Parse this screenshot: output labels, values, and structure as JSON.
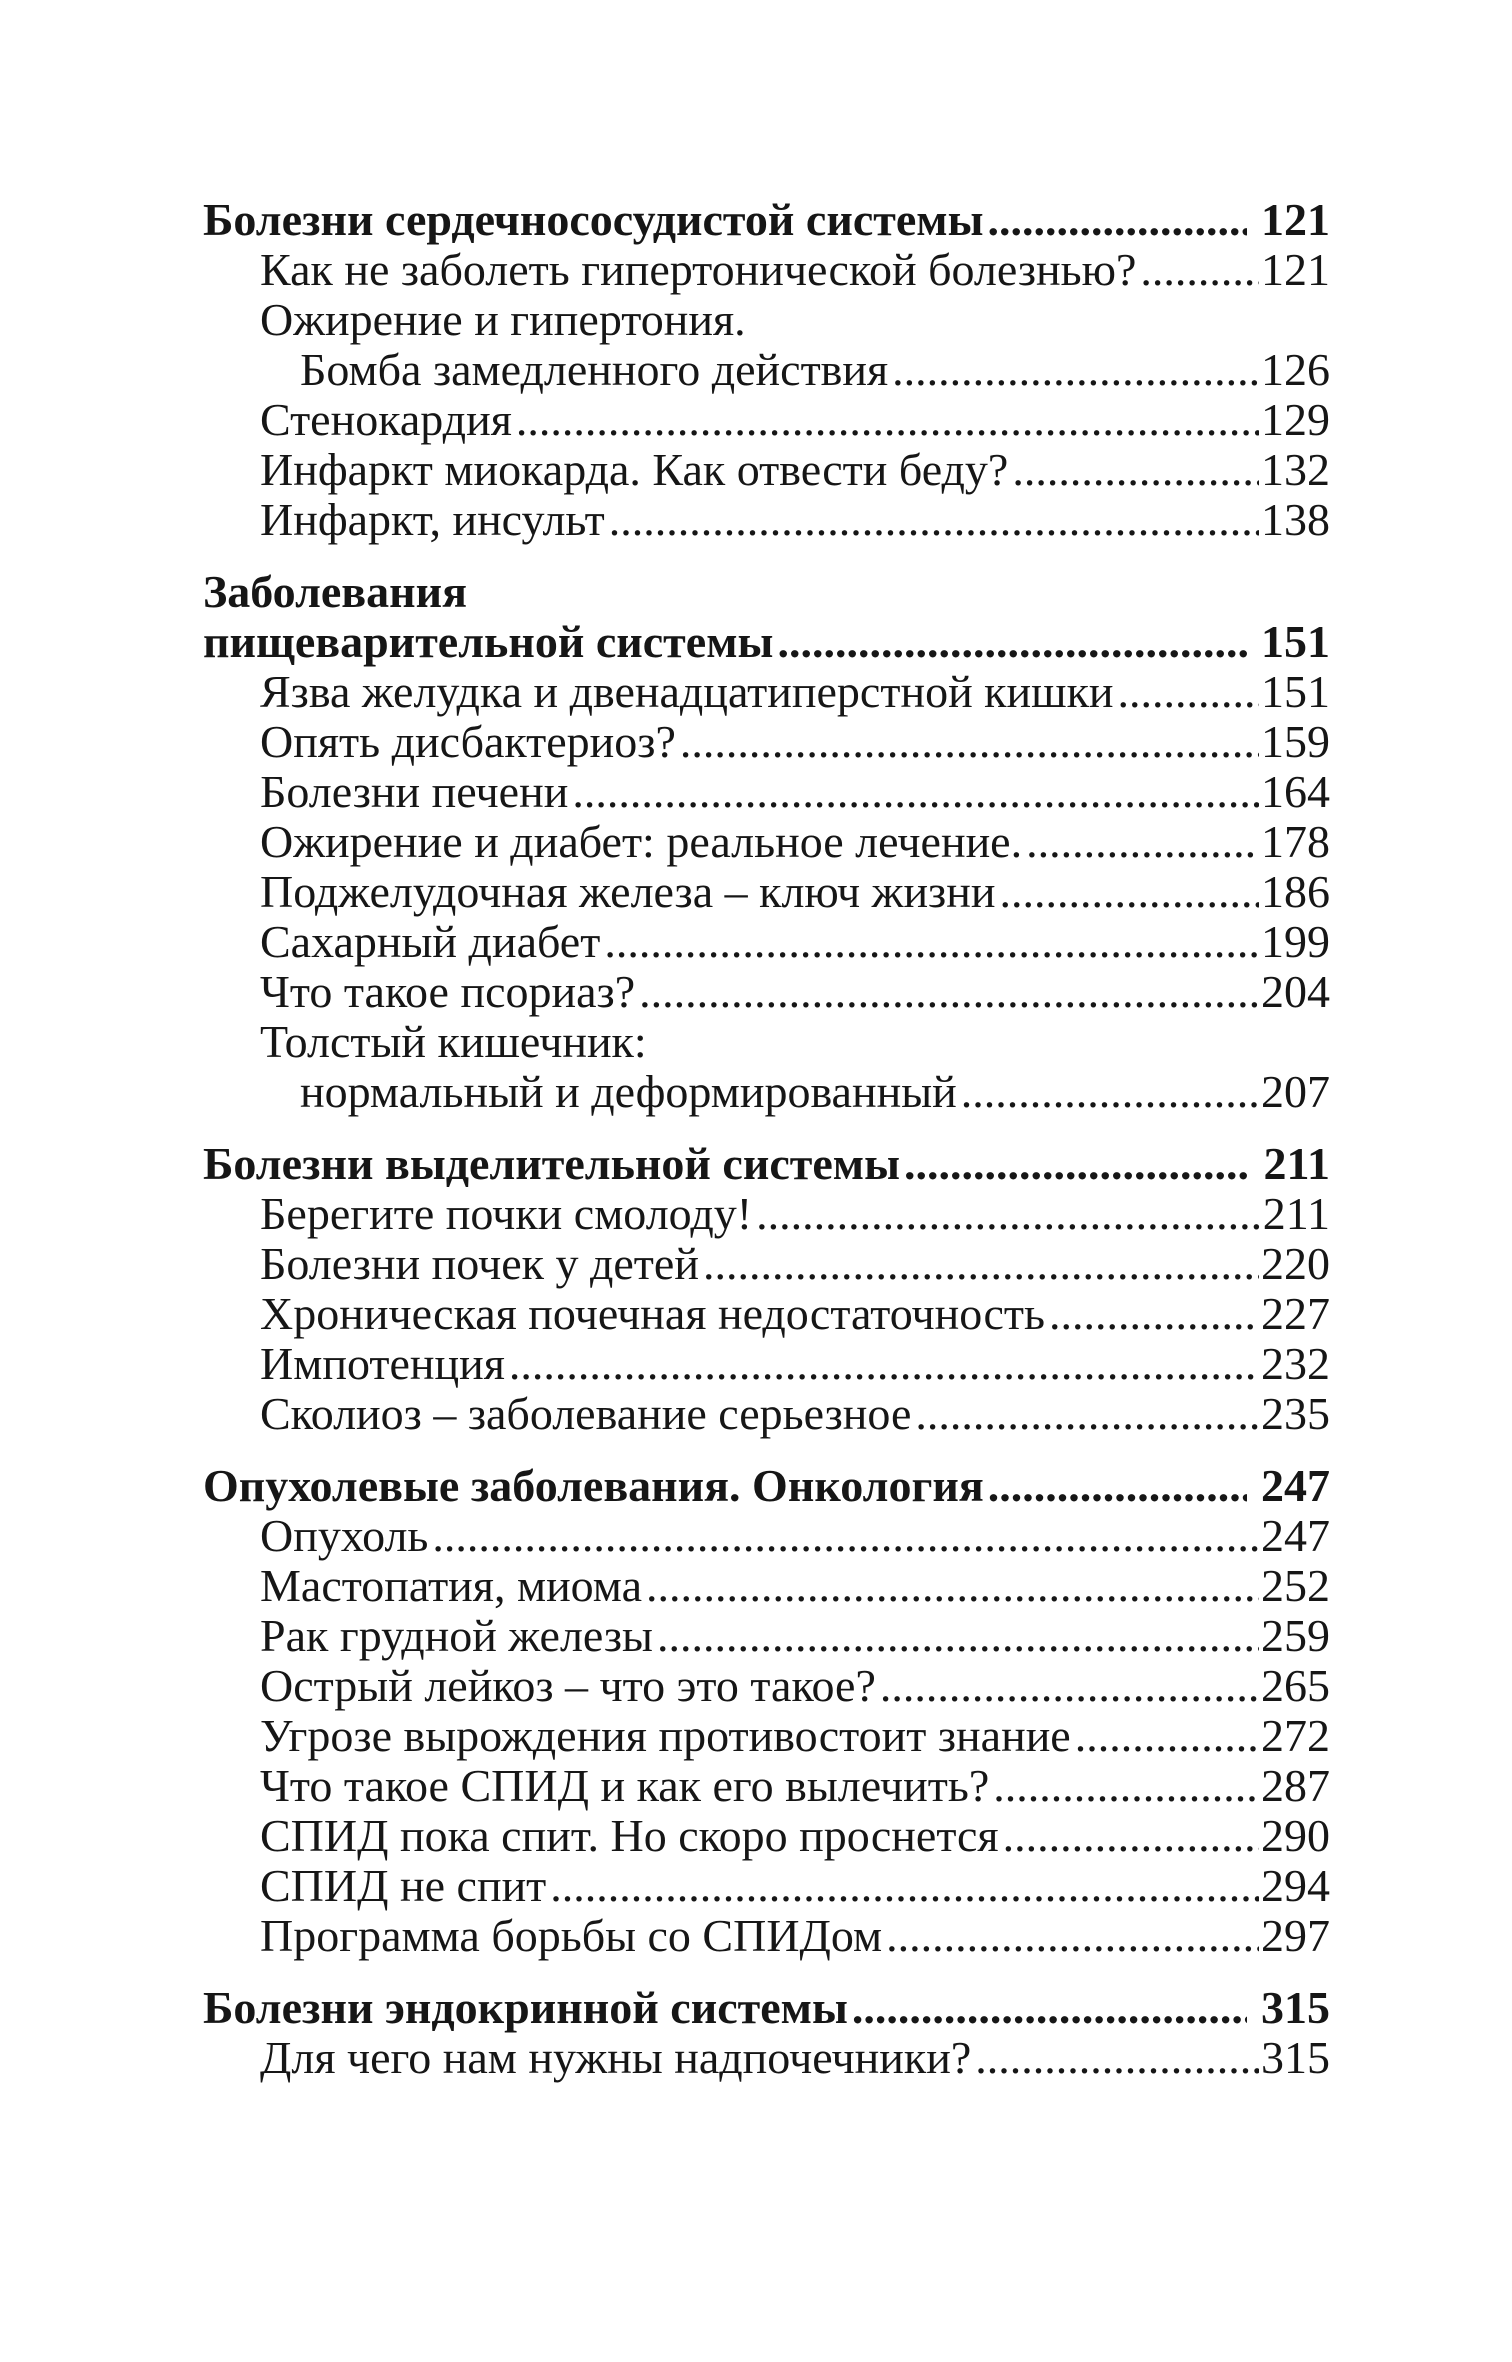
{
  "page": {
    "background_color": "#ffffff",
    "text_color": "#161616"
  },
  "toc": {
    "sections": [
      {
        "heading_lines": [
          "Болезни сердечнососудистой системы"
        ],
        "page": "121",
        "items": [
          {
            "lines": [
              "Как не заболеть гипертонической болезнью?"
            ],
            "page": "121"
          },
          {
            "lines": [
              "Ожирение и гипертония.",
              "Бомба замедленного действия"
            ],
            "page": "126"
          },
          {
            "lines": [
              "Стенокардия"
            ],
            "page": "129"
          },
          {
            "lines": [
              "Инфаркт миокарда. Как отвести беду?"
            ],
            "page": "132"
          },
          {
            "lines": [
              "Инфаркт, инсульт"
            ],
            "page": "138"
          }
        ]
      },
      {
        "heading_lines": [
          "Заболевания",
          "пищеварительной системы"
        ],
        "page": "151",
        "items": [
          {
            "lines": [
              "Язва желудка и двенадцатиперстной кишки"
            ],
            "page": "151"
          },
          {
            "lines": [
              "Опять дисбактериоз?"
            ],
            "page": "159"
          },
          {
            "lines": [
              "Болезни печени"
            ],
            "page": "164"
          },
          {
            "lines": [
              "Ожирение и диабет: реальное лечение."
            ],
            "page": "178"
          },
          {
            "lines": [
              "Поджелудочная железа – ключ жизни"
            ],
            "page": "186"
          },
          {
            "lines": [
              "Сахарный диабет"
            ],
            "page": "199"
          },
          {
            "lines": [
              "Что такое псориаз?"
            ],
            "page": "204"
          },
          {
            "lines": [
              "Толстый кишечник:",
              "нормальный и деформированный"
            ],
            "page": "207"
          }
        ]
      },
      {
        "heading_lines": [
          "Болезни выделительной системы"
        ],
        "page": "211",
        "items": [
          {
            "lines": [
              "Берегите почки смолоду!"
            ],
            "page": "211"
          },
          {
            "lines": [
              "Болезни почек у детей"
            ],
            "page": "220"
          },
          {
            "lines": [
              "Хроническая почечная недостаточность"
            ],
            "page": "227"
          },
          {
            "lines": [
              "Импотенция"
            ],
            "page": "232"
          },
          {
            "lines": [
              "Сколиоз – заболевание серьезное"
            ],
            "page": "235"
          }
        ]
      },
      {
        "heading_lines": [
          "Опухолевые заболевания. Онкология"
        ],
        "page": "247",
        "items": [
          {
            "lines": [
              "Опухоль"
            ],
            "page": "247"
          },
          {
            "lines": [
              "Мастопатия, миома"
            ],
            "page": "252"
          },
          {
            "lines": [
              "Рак грудной железы"
            ],
            "page": "259"
          },
          {
            "lines": [
              "Острый лейкоз – что это такое?"
            ],
            "page": "265"
          },
          {
            "lines": [
              "Угрозе вырождения противостоит знание"
            ],
            "page": "272"
          },
          {
            "lines": [
              "Что такое СПИД и как его вылечить?"
            ],
            "page": "287"
          },
          {
            "lines": [
              "СПИД пока спит. Но скоро проснется"
            ],
            "page": "290"
          },
          {
            "lines": [
              "СПИД не спит"
            ],
            "page": "294"
          },
          {
            "lines": [
              "Программа борьбы со СПИДом"
            ],
            "page": "297"
          }
        ]
      },
      {
        "heading_lines": [
          "Болезни эндокринной системы"
        ],
        "page": "315",
        "items": [
          {
            "lines": [
              "Для чего нам нужны надпочечники?"
            ],
            "page": "315"
          }
        ]
      }
    ]
  }
}
